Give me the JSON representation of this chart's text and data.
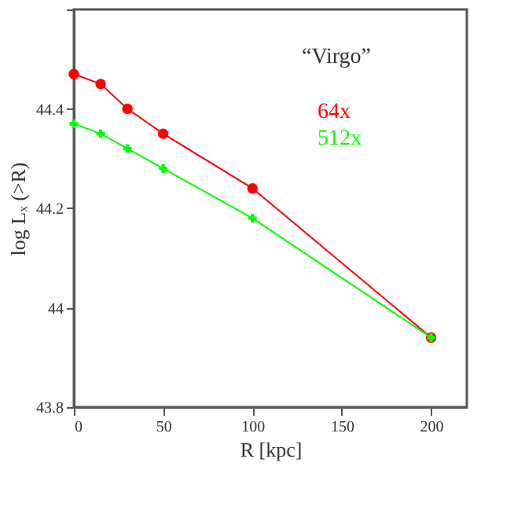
{
  "chart_data": {
    "type": "line",
    "xlabel": "R [kpc]",
    "ylabel": "log Lₓ (>R)",
    "x": [
      0,
      15,
      30,
      50,
      100,
      200
    ],
    "series": [
      {
        "name": "64x",
        "color": "#ff0000",
        "marker": "circle",
        "values": [
          44.47,
          44.45,
          44.4,
          44.35,
          44.24,
          43.94
        ]
      },
      {
        "name": "512x",
        "color": "#00ff00",
        "marker": "cross",
        "values": [
          44.37,
          44.35,
          44.32,
          44.28,
          44.18,
          43.94
        ]
      }
    ],
    "xlim": [
      0,
      220
    ],
    "xticks": [
      0,
      50,
      100,
      150,
      200
    ],
    "ylim": [
      43.8,
      44.6
    ],
    "yticks": [
      43.8,
      {
        "value": 44,
        "label": "44"
      },
      44.2,
      44.4,
      {
        "value": 44.6,
        "label": null
      }
    ],
    "annotations": [
      "“Virgo”"
    ],
    "legend": "top right",
    "grid": false
  }
}
